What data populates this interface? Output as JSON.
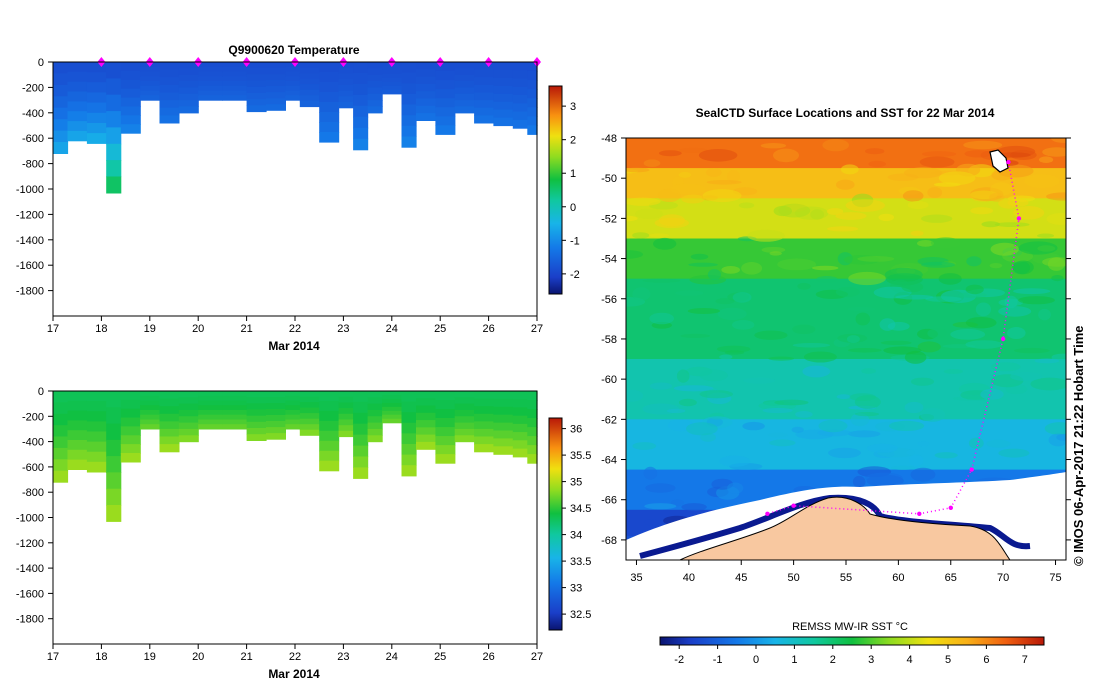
{
  "charts": {
    "temperature": {
      "type": "heatmap",
      "title": "Q9900620  Temperature",
      "xlabel": "Mar 2014",
      "x_ticks": [
        "17",
        "18",
        "19",
        "20",
        "21",
        "22",
        "23",
        "24",
        "25",
        "26",
        "27"
      ],
      "y_ticks": [
        "0",
        "-200",
        "-400",
        "-600",
        "-800",
        "-1000",
        "-1200",
        "-1400",
        "-1600",
        "-1800"
      ],
      "xlim": [
        17,
        27
      ],
      "ylim": [
        -2000,
        0
      ],
      "colorbar_ticks": [
        "3",
        "2",
        "1",
        "0",
        "-1",
        "-2"
      ],
      "colorbar_range": [
        -2.6,
        3.6
      ],
      "surface_marker_days": [
        18,
        19,
        20,
        21,
        22,
        23,
        24,
        25,
        26,
        27
      ],
      "marker_color": "#ff00ff"
    },
    "salinity": {
      "type": "heatmap",
      "title": "",
      "xlabel": "Mar 2014",
      "x_ticks": [
        "17",
        "18",
        "19",
        "20",
        "21",
        "22",
        "23",
        "24",
        "25",
        "26",
        "27"
      ],
      "y_ticks": [
        "0",
        "-200",
        "-400",
        "-600",
        "-800",
        "-1000",
        "-1200",
        "-1400",
        "-1600",
        "-1800"
      ],
      "xlim": [
        17,
        27
      ],
      "ylim": [
        -2000,
        0
      ],
      "colorbar_ticks": [
        "36",
        "35.5",
        "35",
        "34.5",
        "34",
        "33.5",
        "33",
        "32.5"
      ],
      "colorbar_range": [
        32.2,
        36.2
      ]
    },
    "map": {
      "title": "SealCTD Surface Locations and SST for 22 Mar 2014",
      "lon_ticks": [
        "35",
        "40",
        "45",
        "50",
        "55",
        "60",
        "65",
        "70",
        "75"
      ],
      "lat_ticks": [
        "-48",
        "-50",
        "-52",
        "-54",
        "-56",
        "-58",
        "-60",
        "-62",
        "-64",
        "-66",
        "-68"
      ],
      "lon_range": [
        34,
        76
      ],
      "lat_range": [
        -69,
        -48
      ],
      "colorbar_label": "REMSS MW-IR SST °C",
      "colorbar_ticks": [
        "-2",
        "-1",
        "0",
        "1",
        "2",
        "3",
        "4",
        "5",
        "6",
        "7"
      ],
      "colorbar_range": [
        -2.5,
        7.5
      ],
      "credit": "©  IMOS 06-Apr-2017 21:22 Hobart Time",
      "land_color": "#f8c8a0",
      "track_color": "#ff00ff"
    }
  },
  "chart_data": [
    {
      "type": "heatmap",
      "title": "Q9900620  Temperature",
      "xlabel": "Mar 2014",
      "ylabel": "",
      "units": "°C",
      "profiles": [
        {
          "day": 17.0,
          "max_depth": 720,
          "t_surface": -1.9,
          "t_deep": -0.8
        },
        {
          "day": 17.3,
          "max_depth": 620,
          "t_surface": -1.9,
          "t_deep": -0.8
        },
        {
          "day": 17.7,
          "max_depth": 640,
          "t_surface": -1.9,
          "t_deep": -0.7
        },
        {
          "day": 18.1,
          "max_depth": 1030,
          "t_surface": -1.9,
          "t_deep": 0.5
        },
        {
          "day": 18.4,
          "max_depth": 560,
          "t_surface": -1.9,
          "t_deep": -1.2
        },
        {
          "day": 18.8,
          "max_depth": 300,
          "t_surface": -1.9,
          "t_deep": -1.6
        },
        {
          "day": 19.2,
          "max_depth": 480,
          "t_surface": -1.9,
          "t_deep": -1.4
        },
        {
          "day": 19.6,
          "max_depth": 400,
          "t_surface": -1.9,
          "t_deep": -1.5
        },
        {
          "day": 20.0,
          "max_depth": 300,
          "t_surface": -1.9,
          "t_deep": -1.6
        },
        {
          "day": 20.5,
          "max_depth": 300,
          "t_surface": -1.9,
          "t_deep": -1.6
        },
        {
          "day": 21.0,
          "max_depth": 390,
          "t_surface": -1.9,
          "t_deep": -1.5
        },
        {
          "day": 21.4,
          "max_depth": 380,
          "t_surface": -1.9,
          "t_deep": -1.5
        },
        {
          "day": 21.8,
          "max_depth": 300,
          "t_surface": -1.9,
          "t_deep": -1.6
        },
        {
          "day": 22.1,
          "max_depth": 350,
          "t_surface": -1.9,
          "t_deep": -1.6
        },
        {
          "day": 22.5,
          "max_depth": 630,
          "t_surface": -1.9,
          "t_deep": -1.3
        },
        {
          "day": 22.9,
          "max_depth": 360,
          "t_surface": -1.9,
          "t_deep": -1.6
        },
        {
          "day": 23.2,
          "max_depth": 690,
          "t_surface": -1.9,
          "t_deep": -1.2
        },
        {
          "day": 23.5,
          "max_depth": 400,
          "t_surface": -1.9,
          "t_deep": -1.5
        },
        {
          "day": 23.8,
          "max_depth": 250,
          "t_surface": -1.9,
          "t_deep": -1.7
        },
        {
          "day": 24.2,
          "max_depth": 670,
          "t_surface": -1.9,
          "t_deep": -1.2
        },
        {
          "day": 24.5,
          "max_depth": 460,
          "t_surface": -1.9,
          "t_deep": -1.4
        },
        {
          "day": 24.9,
          "max_depth": 570,
          "t_surface": -1.9,
          "t_deep": -1.3
        },
        {
          "day": 25.3,
          "max_depth": 400,
          "t_surface": -1.9,
          "t_deep": -1.5
        },
        {
          "day": 25.7,
          "max_depth": 480,
          "t_surface": -1.9,
          "t_deep": -1.4
        },
        {
          "day": 26.1,
          "max_depth": 500,
          "t_surface": -1.9,
          "t_deep": -1.4
        },
        {
          "day": 26.5,
          "max_depth": 520,
          "t_surface": -1.9,
          "t_deep": -1.4
        },
        {
          "day": 26.8,
          "max_depth": 570,
          "t_surface": -1.9,
          "t_deep": -1.3
        }
      ]
    },
    {
      "type": "heatmap",
      "title": "",
      "xlabel": "Mar 2014",
      "ylabel": "",
      "units": "PSU",
      "profiles": [
        {
          "day": 17.0,
          "max_depth": 720,
          "s_surface": 34.1,
          "s_deep": 34.7
        },
        {
          "day": 17.3,
          "max_depth": 620,
          "s_surface": 34.1,
          "s_deep": 34.7
        },
        {
          "day": 17.7,
          "max_depth": 640,
          "s_surface": 34.1,
          "s_deep": 34.7
        },
        {
          "day": 18.1,
          "max_depth": 1030,
          "s_surface": 34.1,
          "s_deep": 34.7
        },
        {
          "day": 18.4,
          "max_depth": 560,
          "s_surface": 34.1,
          "s_deep": 34.7
        },
        {
          "day": 18.8,
          "max_depth": 300,
          "s_surface": 34.1,
          "s_deep": 34.5
        },
        {
          "day": 19.2,
          "max_depth": 480,
          "s_surface": 34.1,
          "s_deep": 34.7
        },
        {
          "day": 19.6,
          "max_depth": 400,
          "s_surface": 34.1,
          "s_deep": 34.6
        },
        {
          "day": 20.0,
          "max_depth": 300,
          "s_surface": 34.1,
          "s_deep": 34.5
        },
        {
          "day": 20.5,
          "max_depth": 300,
          "s_surface": 34.1,
          "s_deep": 34.5
        },
        {
          "day": 21.0,
          "max_depth": 390,
          "s_surface": 34.1,
          "s_deep": 34.6
        },
        {
          "day": 21.4,
          "max_depth": 380,
          "s_surface": 34.1,
          "s_deep": 34.6
        },
        {
          "day": 21.8,
          "max_depth": 300,
          "s_surface": 34.1,
          "s_deep": 34.5
        },
        {
          "day": 22.1,
          "max_depth": 350,
          "s_surface": 34.1,
          "s_deep": 34.6
        },
        {
          "day": 22.5,
          "max_depth": 630,
          "s_surface": 34.1,
          "s_deep": 34.7
        },
        {
          "day": 22.9,
          "max_depth": 360,
          "s_surface": 34.1,
          "s_deep": 34.6
        },
        {
          "day": 23.2,
          "max_depth": 690,
          "s_surface": 34.1,
          "s_deep": 34.7
        },
        {
          "day": 23.5,
          "max_depth": 400,
          "s_surface": 34.1,
          "s_deep": 34.6
        },
        {
          "day": 23.8,
          "max_depth": 250,
          "s_surface": 34.1,
          "s_deep": 34.5
        },
        {
          "day": 24.2,
          "max_depth": 670,
          "s_surface": 34.1,
          "s_deep": 34.7
        },
        {
          "day": 24.5,
          "max_depth": 460,
          "s_surface": 34.1,
          "s_deep": 34.7
        },
        {
          "day": 24.9,
          "max_depth": 570,
          "s_surface": 34.1,
          "s_deep": 34.7
        },
        {
          "day": 25.3,
          "max_depth": 400,
          "s_surface": 34.1,
          "s_deep": 34.6
        },
        {
          "day": 25.7,
          "max_depth": 480,
          "s_surface": 34.1,
          "s_deep": 34.7
        },
        {
          "day": 26.1,
          "max_depth": 500,
          "s_surface": 34.1,
          "s_deep": 34.7
        },
        {
          "day": 26.5,
          "max_depth": 520,
          "s_surface": 34.1,
          "s_deep": 34.7
        },
        {
          "day": 26.8,
          "max_depth": 570,
          "s_surface": 34.1,
          "s_deep": 34.7
        }
      ]
    },
    {
      "type": "heatmap",
      "title": "SealCTD Surface Locations and SST for 22 Mar 2014",
      "xlabel": "",
      "ylabel": "",
      "units": "°C",
      "sst_bands": [
        {
          "lat_from": -48,
          "lat_to": -49.5,
          "sst": 6.3
        },
        {
          "lat_from": -49.5,
          "lat_to": -51,
          "sst": 5.2
        },
        {
          "lat_from": -51,
          "lat_to": -53,
          "sst": 4.2
        },
        {
          "lat_from": -53,
          "lat_to": -55,
          "sst": 2.8
        },
        {
          "lat_from": -55,
          "lat_to": -59,
          "sst": 2.0
        },
        {
          "lat_from": -59,
          "lat_to": -62,
          "sst": 1.3
        },
        {
          "lat_from": -62,
          "lat_to": -64.5,
          "sst": 0.6
        },
        {
          "lat_from": -64.5,
          "lat_to": -66.5,
          "sst": -0.5
        },
        {
          "lat_from": -66.5,
          "lat_to": -68,
          "sst": -1.5
        }
      ],
      "seal_track": [
        {
          "lon": 70.5,
          "lat": -49.2
        },
        {
          "lon": 71.5,
          "lat": -52.0
        },
        {
          "lon": 70.0,
          "lat": -58.0
        },
        {
          "lon": 67.0,
          "lat": -64.5
        },
        {
          "lon": 65.0,
          "lat": -66.4
        },
        {
          "lon": 62.0,
          "lat": -66.7
        },
        {
          "lon": 50.0,
          "lat": -66.3
        },
        {
          "lon": 47.5,
          "lat": -66.7
        }
      ]
    }
  ]
}
